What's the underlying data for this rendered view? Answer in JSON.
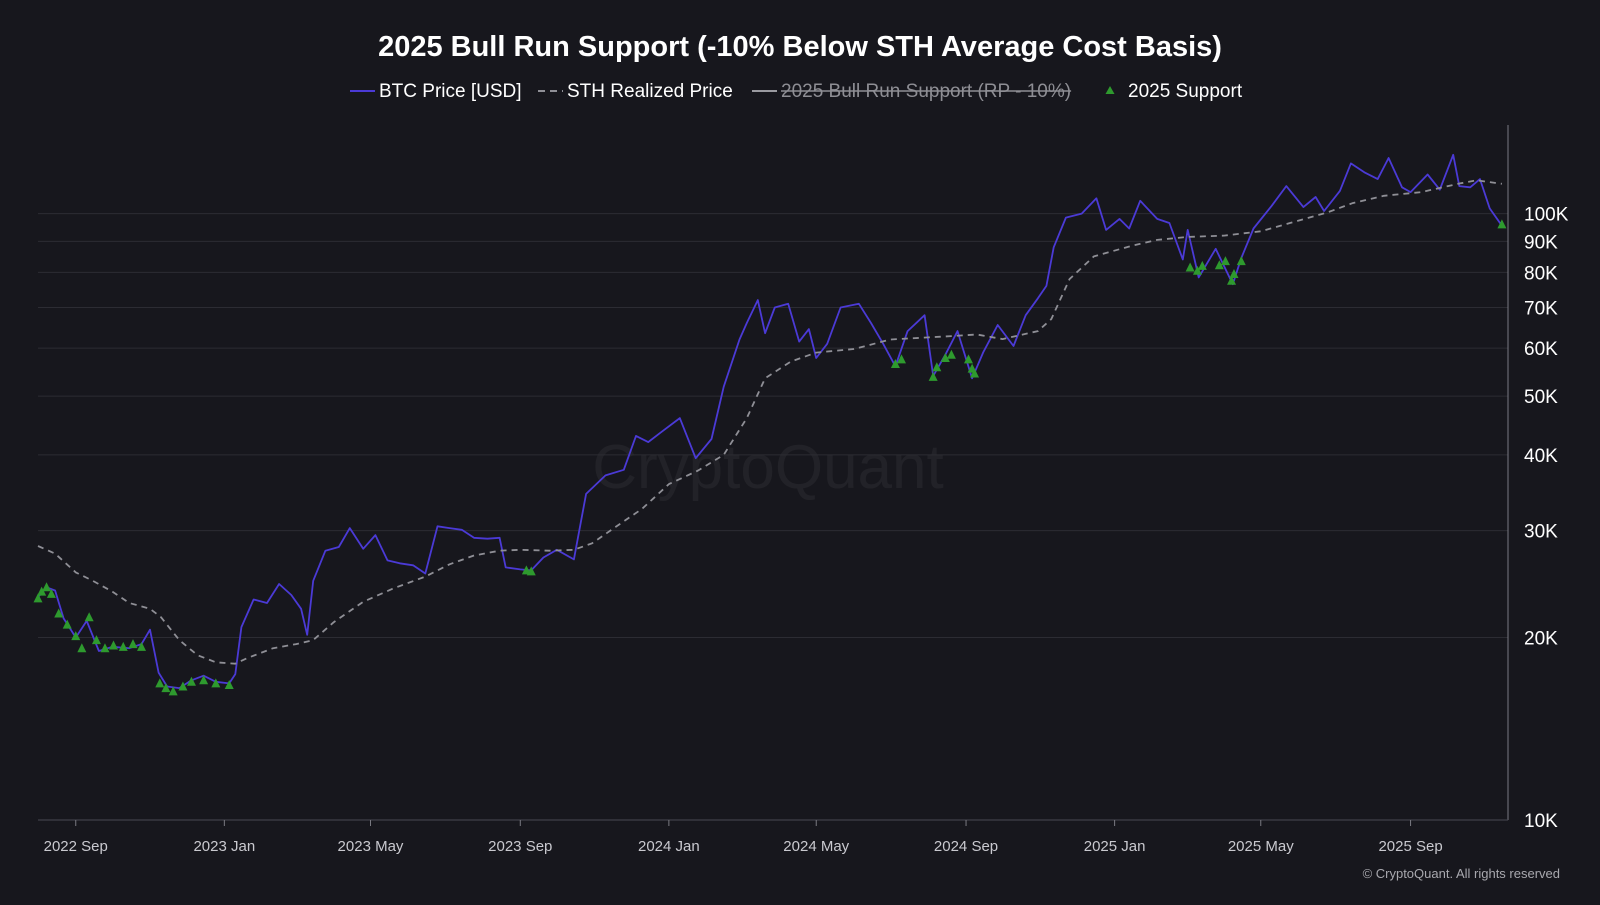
{
  "chart_data": {
    "type": "line",
    "title": "2025 Bull Run Support (-10% Below STH Average Cost Basis)",
    "watermark": "CryptoQuant",
    "copyright": "© CryptoQuant. All rights reserved",
    "legend_position": "top-center",
    "grid": true,
    "y_scale": "log",
    "ylim": [
      10000,
      140000
    ],
    "xlim": [
      "2022-08-01",
      "2025-11-20"
    ],
    "x_ticks": [
      {
        "date": "2022-09-01",
        "label": "2022 Sep"
      },
      {
        "date": "2023-01-01",
        "label": "2023 Jan"
      },
      {
        "date": "2023-05-01",
        "label": "2023 May"
      },
      {
        "date": "2023-09-01",
        "label": "2023 Sep"
      },
      {
        "date": "2024-01-01",
        "label": "2024 Jan"
      },
      {
        "date": "2024-05-01",
        "label": "2024 May"
      },
      {
        "date": "2024-09-01",
        "label": "2024 Sep"
      },
      {
        "date": "2025-01-01",
        "label": "2025 Jan"
      },
      {
        "date": "2025-05-01",
        "label": "2025 May"
      },
      {
        "date": "2025-09-01",
        "label": "2025 Sep"
      }
    ],
    "y_ticks": [
      {
        "value": 10000,
        "label": "10K"
      },
      {
        "value": 20000,
        "label": "20K"
      },
      {
        "value": 30000,
        "label": "30K"
      },
      {
        "value": 40000,
        "label": "40K"
      },
      {
        "value": 50000,
        "label": "50K"
      },
      {
        "value": 60000,
        "label": "60K"
      },
      {
        "value": 70000,
        "label": "70K"
      },
      {
        "value": 80000,
        "label": "80K"
      },
      {
        "value": 90000,
        "label": "90K"
      },
      {
        "value": 100000,
        "label": "100K"
      }
    ],
    "series": [
      {
        "name": "BTC Price [USD]",
        "style": "solid",
        "color": "#4b3ad6",
        "points": [
          [
            "2022-08-01",
            23300
          ],
          [
            "2022-08-08",
            24200
          ],
          [
            "2022-08-15",
            23900
          ],
          [
            "2022-08-22",
            21500
          ],
          [
            "2022-09-01",
            20000
          ],
          [
            "2022-09-10",
            21300
          ],
          [
            "2022-09-20",
            19000
          ],
          [
            "2022-10-01",
            19300
          ],
          [
            "2022-10-15",
            19200
          ],
          [
            "2022-10-25",
            19500
          ],
          [
            "2022-11-01",
            20600
          ],
          [
            "2022-11-08",
            17500
          ],
          [
            "2022-11-15",
            16600
          ],
          [
            "2022-11-25",
            16500
          ],
          [
            "2022-12-05",
            17000
          ],
          [
            "2022-12-15",
            17300
          ],
          [
            "2022-12-25",
            16900
          ],
          [
            "2023-01-05",
            16800
          ],
          [
            "2023-01-10",
            17400
          ],
          [
            "2023-01-15",
            20800
          ],
          [
            "2023-01-25",
            23100
          ],
          [
            "2023-02-05",
            22800
          ],
          [
            "2023-02-15",
            24500
          ],
          [
            "2023-02-25",
            23500
          ],
          [
            "2023-03-05",
            22300
          ],
          [
            "2023-03-10",
            20200
          ],
          [
            "2023-03-15",
            24800
          ],
          [
            "2023-03-25",
            27800
          ],
          [
            "2023-04-05",
            28200
          ],
          [
            "2023-04-14",
            30300
          ],
          [
            "2023-04-25",
            28000
          ],
          [
            "2023-05-05",
            29500
          ],
          [
            "2023-05-15",
            26800
          ],
          [
            "2023-05-25",
            26500
          ],
          [
            "2023-06-05",
            26300
          ],
          [
            "2023-06-15",
            25500
          ],
          [
            "2023-06-25",
            30500
          ],
          [
            "2023-07-05",
            30300
          ],
          [
            "2023-07-15",
            30100
          ],
          [
            "2023-07-25",
            29200
          ],
          [
            "2023-08-05",
            29100
          ],
          [
            "2023-08-15",
            29200
          ],
          [
            "2023-08-20",
            26100
          ],
          [
            "2023-09-01",
            25900
          ],
          [
            "2023-09-10",
            25800
          ],
          [
            "2023-09-20",
            27100
          ],
          [
            "2023-10-01",
            27900
          ],
          [
            "2023-10-15",
            26900
          ],
          [
            "2023-10-25",
            34500
          ],
          [
            "2023-11-10",
            37000
          ],
          [
            "2023-11-25",
            37800
          ],
          [
            "2023-12-05",
            43000
          ],
          [
            "2023-12-15",
            42000
          ],
          [
            "2023-12-25",
            43500
          ],
          [
            "2024-01-10",
            46000
          ],
          [
            "2024-01-23",
            39500
          ],
          [
            "2024-02-05",
            42500
          ],
          [
            "2024-02-15",
            51800
          ],
          [
            "2024-02-28",
            62000
          ],
          [
            "2024-03-05",
            66000
          ],
          [
            "2024-03-14",
            72000
          ],
          [
            "2024-03-20",
            63500
          ],
          [
            "2024-03-28",
            70000
          ],
          [
            "2024-04-08",
            71000
          ],
          [
            "2024-04-17",
            61500
          ],
          [
            "2024-04-25",
            64500
          ],
          [
            "2024-05-01",
            57800
          ],
          [
            "2024-05-10",
            61000
          ],
          [
            "2024-05-21",
            70000
          ],
          [
            "2024-06-05",
            71000
          ],
          [
            "2024-06-15",
            66000
          ],
          [
            "2024-06-25",
            61000
          ],
          [
            "2024-07-05",
            56000
          ],
          [
            "2024-07-15",
            64000
          ],
          [
            "2024-07-29",
            68000
          ],
          [
            "2024-08-05",
            54000
          ],
          [
            "2024-08-15",
            58500
          ],
          [
            "2024-08-25",
            64000
          ],
          [
            "2024-09-06",
            53500
          ],
          [
            "2024-09-15",
            59000
          ],
          [
            "2024-09-27",
            65500
          ],
          [
            "2024-10-10",
            60500
          ],
          [
            "2024-10-20",
            68000
          ],
          [
            "2024-10-30",
            72500
          ],
          [
            "2024-11-06",
            76000
          ],
          [
            "2024-11-12",
            88000
          ],
          [
            "2024-11-22",
            98500
          ],
          [
            "2024-12-05",
            100000
          ],
          [
            "2024-12-17",
            106000
          ],
          [
            "2024-12-25",
            94000
          ],
          [
            "2025-01-05",
            98000
          ],
          [
            "2025-01-13",
            94500
          ],
          [
            "2025-01-22",
            105000
          ],
          [
            "2025-02-05",
            98000
          ],
          [
            "2025-02-15",
            96500
          ],
          [
            "2025-02-26",
            84000
          ],
          [
            "2025-03-02",
            94000
          ],
          [
            "2025-03-11",
            78500
          ],
          [
            "2025-03-25",
            87500
          ],
          [
            "2025-04-08",
            76500
          ],
          [
            "2025-04-15",
            84500
          ],
          [
            "2025-04-25",
            94500
          ],
          [
            "2025-05-10",
            103000
          ],
          [
            "2025-05-22",
            111000
          ],
          [
            "2025-06-05",
            102500
          ],
          [
            "2025-06-15",
            106500
          ],
          [
            "2025-06-22",
            101000
          ],
          [
            "2025-07-05",
            109000
          ],
          [
            "2025-07-14",
            121000
          ],
          [
            "2025-07-25",
            117000
          ],
          [
            "2025-08-05",
            114000
          ],
          [
            "2025-08-14",
            123500
          ],
          [
            "2025-08-25",
            110500
          ],
          [
            "2025-09-01",
            108500
          ],
          [
            "2025-09-15",
            116000
          ],
          [
            "2025-09-25",
            109500
          ],
          [
            "2025-10-06",
            125000
          ],
          [
            "2025-10-11",
            111000
          ],
          [
            "2025-10-20",
            110500
          ],
          [
            "2025-10-28",
            114000
          ],
          [
            "2025-11-05",
            102000
          ],
          [
            "2025-11-15",
            95500
          ]
        ]
      },
      {
        "name": "STH Realized Price",
        "style": "dashed",
        "color": "#8f8f96",
        "points": [
          [
            "2022-08-01",
            28300
          ],
          [
            "2022-08-15",
            27500
          ],
          [
            "2022-09-01",
            25600
          ],
          [
            "2022-09-15",
            24800
          ],
          [
            "2022-10-01",
            23800
          ],
          [
            "2022-10-15",
            22800
          ],
          [
            "2022-11-01",
            22300
          ],
          [
            "2022-11-10",
            21600
          ],
          [
            "2022-11-25",
            19800
          ],
          [
            "2022-12-10",
            18700
          ],
          [
            "2022-12-25",
            18200
          ],
          [
            "2023-01-10",
            18100
          ],
          [
            "2023-01-20",
            18500
          ],
          [
            "2023-02-10",
            19200
          ],
          [
            "2023-03-01",
            19500
          ],
          [
            "2023-03-15",
            19800
          ],
          [
            "2023-04-01",
            21200
          ],
          [
            "2023-04-25",
            22900
          ],
          [
            "2023-05-20",
            24100
          ],
          [
            "2023-06-15",
            25200
          ],
          [
            "2023-07-05",
            26400
          ],
          [
            "2023-07-25",
            27300
          ],
          [
            "2023-08-15",
            27800
          ],
          [
            "2023-09-01",
            27900
          ],
          [
            "2023-09-25",
            27800
          ],
          [
            "2023-10-15",
            27900
          ],
          [
            "2023-10-30",
            28600
          ],
          [
            "2023-11-20",
            30600
          ],
          [
            "2023-12-10",
            32600
          ],
          [
            "2024-01-01",
            35800
          ],
          [
            "2024-01-25",
            37700
          ],
          [
            "2024-02-15",
            40000
          ],
          [
            "2024-03-05",
            46000
          ],
          [
            "2024-03-20",
            53500
          ],
          [
            "2024-04-10",
            57000
          ],
          [
            "2024-05-01",
            59000
          ],
          [
            "2024-06-01",
            59800
          ],
          [
            "2024-07-01",
            62000
          ],
          [
            "2024-08-01",
            62500
          ],
          [
            "2024-08-20",
            62800
          ],
          [
            "2024-09-10",
            63200
          ],
          [
            "2024-10-01",
            62100
          ],
          [
            "2024-10-30",
            64000
          ],
          [
            "2024-11-10",
            67000
          ],
          [
            "2024-11-25",
            78000
          ],
          [
            "2024-12-15",
            85000
          ],
          [
            "2025-01-15",
            88500
          ],
          [
            "2025-02-05",
            90500
          ],
          [
            "2025-03-01",
            91500
          ],
          [
            "2025-04-01",
            92000
          ],
          [
            "2025-05-01",
            93500
          ],
          [
            "2025-05-25",
            96500
          ],
          [
            "2025-06-25",
            100500
          ],
          [
            "2025-07-15",
            104000
          ],
          [
            "2025-08-10",
            107000
          ],
          [
            "2025-09-10",
            108500
          ],
          [
            "2025-10-10",
            112000
          ],
          [
            "2025-10-25",
            113500
          ],
          [
            "2025-11-15",
            112000
          ]
        ]
      },
      {
        "name": "2025 Bull Run Support (RP - 10%)",
        "style": "solid",
        "color": "#9a9aa0",
        "hidden": true,
        "points": []
      },
      {
        "name": "2025 Support",
        "style": "marker-triangle",
        "color": "#2e9a2e",
        "points": [
          [
            "2022-08-01",
            23200
          ],
          [
            "2022-08-04",
            23800
          ],
          [
            "2022-08-08",
            24200
          ],
          [
            "2022-08-12",
            23600
          ],
          [
            "2022-08-18",
            21900
          ],
          [
            "2022-08-25",
            21000
          ],
          [
            "2022-09-01",
            20100
          ],
          [
            "2022-09-06",
            19200
          ],
          [
            "2022-09-12",
            21600
          ],
          [
            "2022-09-18",
            19800
          ],
          [
            "2022-09-25",
            19200
          ],
          [
            "2022-10-02",
            19400
          ],
          [
            "2022-10-10",
            19300
          ],
          [
            "2022-10-18",
            19500
          ],
          [
            "2022-10-25",
            19300
          ],
          [
            "2022-11-09",
            16800
          ],
          [
            "2022-11-14",
            16500
          ],
          [
            "2022-11-20",
            16300
          ],
          [
            "2022-11-28",
            16600
          ],
          [
            "2022-12-05",
            16900
          ],
          [
            "2022-12-15",
            17000
          ],
          [
            "2022-12-25",
            16800
          ],
          [
            "2023-01-05",
            16700
          ],
          [
            "2023-09-06",
            25800
          ],
          [
            "2023-09-10",
            25700
          ],
          [
            "2024-07-05",
            56500
          ],
          [
            "2024-07-10",
            57500
          ],
          [
            "2024-08-05",
            53800
          ],
          [
            "2024-08-08",
            55800
          ],
          [
            "2024-08-15",
            57800
          ],
          [
            "2024-08-20",
            58500
          ],
          [
            "2024-09-03",
            57500
          ],
          [
            "2024-09-06",
            55500
          ],
          [
            "2024-09-08",
            54500
          ],
          [
            "2025-03-04",
            81500
          ],
          [
            "2025-03-10",
            80500
          ],
          [
            "2025-03-14",
            82000
          ],
          [
            "2025-03-28",
            82200
          ],
          [
            "2025-04-02",
            83500
          ],
          [
            "2025-04-07",
            77500
          ],
          [
            "2025-04-09",
            79500
          ],
          [
            "2025-04-15",
            83500
          ],
          [
            "2025-11-15",
            96000
          ]
        ]
      }
    ]
  }
}
